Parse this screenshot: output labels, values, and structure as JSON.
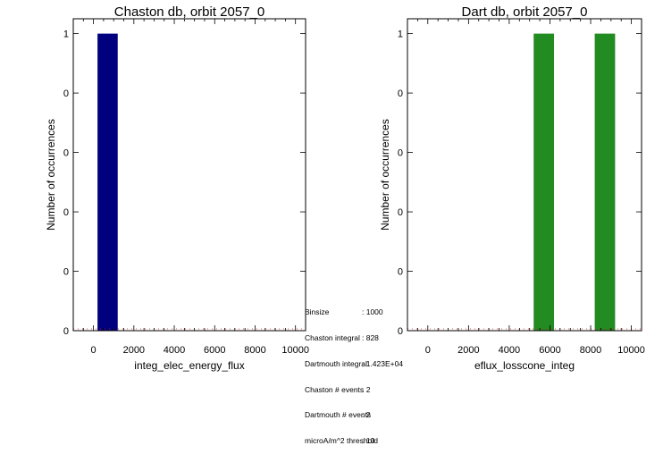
{
  "chart_data": [
    {
      "type": "bar",
      "title": "Chaston db, orbit 2057_0",
      "xlabel": "integ_elec_energy_flux",
      "ylabel": "Number of occurrences",
      "xlim": [
        -1000,
        10500
      ],
      "ylim": [
        0,
        1.05
      ],
      "xticks": [
        0,
        2000,
        4000,
        6000,
        8000,
        10000
      ],
      "yticks": [
        0,
        0.2,
        0.4,
        0.6,
        0.8,
        1
      ],
      "ytick_labels": [
        "0",
        "0",
        "0",
        "0",
        "0",
        "1"
      ],
      "bars": [
        {
          "x0": 200,
          "x1": 1200,
          "value": 1
        }
      ],
      "color": "#00007f"
    },
    {
      "type": "bar",
      "title": "Dart db, orbit 2057_0",
      "xlabel": "eflux_losscone_integ",
      "ylabel": "Number of occurrences",
      "xlim": [
        -1000,
        10500
      ],
      "ylim": [
        0,
        1.05
      ],
      "xticks": [
        0,
        2000,
        4000,
        6000,
        8000,
        10000
      ],
      "yticks": [
        0,
        0.2,
        0.4,
        0.6,
        0.8,
        1
      ],
      "ytick_labels": [
        "0",
        "0",
        "0",
        "0",
        "0",
        "1"
      ],
      "bars": [
        {
          "x0": 5200,
          "x1": 6200,
          "value": 1
        },
        {
          "x0": 8200,
          "x1": 9200,
          "value": 1
        }
      ],
      "color": "#228b22"
    }
  ],
  "stats": [
    {
      "key": "Binsize",
      "value": ": 1000"
    },
    {
      "key": "Chaston integral",
      "value": ": 828"
    },
    {
      "key": "Dartmouth integral",
      "value": ": 1.423E+04"
    },
    {
      "key": "Chaston # events",
      "value": ": 2"
    },
    {
      "key": "Dartmouth # events",
      "value": ": 2"
    },
    {
      "key": "microA/m^2 threshold",
      "value": ": 10"
    }
  ]
}
